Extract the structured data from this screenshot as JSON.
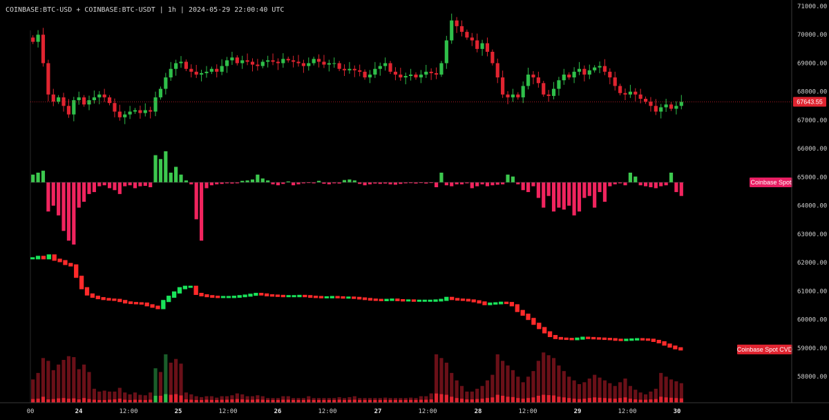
{
  "header": {
    "symbol": "COINBASE:BTC-USD + COINBASE:BTC-USDT",
    "sep1": "|",
    "interval": "1h",
    "sep2": "|",
    "datetime": "2024-05-29 22:00:40 UTC"
  },
  "colors": {
    "up": "#2fbf4a",
    "down": "#e02430",
    "delta_up": "#3cc84e",
    "delta_down": "#f0245e",
    "cvd_up": "#19e35a",
    "cvd_down": "#ff2a2a",
    "vol_up_dark": "#1a5e2a",
    "vol_down_dark": "#6a1018",
    "price_tag": "#e02430",
    "label_pink": "#e91e63",
    "label_red": "#e02430",
    "axis_text": "#cfcfcf"
  },
  "price_tag": "67643.55",
  "indicator_labels": {
    "delta": "Coinbase Spot",
    "cvd": "Coinbase Spot CVD"
  },
  "chart_data": {
    "type": "candlestick",
    "title": "COINBASE:BTC-USD + COINBASE:BTC-USDT",
    "interval": "1h",
    "y_axis_ticks": [
      "71000.00",
      "70000.00",
      "69000.00",
      "68000.00",
      "67000.00",
      "66000.00",
      "65000.00",
      "64000.00",
      "63000.00",
      "62000.00",
      "61000.00",
      "60000.00",
      "59000.00",
      "58000.00"
    ],
    "ylim": [
      57400,
      71100
    ],
    "x_axis_ticks": [
      {
        "label": "00",
        "day": false
      },
      {
        "label": "24",
        "day": true
      },
      {
        "label": "12:00",
        "day": false
      },
      {
        "label": "25",
        "day": true
      },
      {
        "label": "12:00",
        "day": false
      },
      {
        "label": "26",
        "day": true
      },
      {
        "label": "12:00",
        "day": false
      },
      {
        "label": "27",
        "day": true
      },
      {
        "label": "12:00",
        "day": false
      },
      {
        "label": "28",
        "day": true
      },
      {
        "label": "12:00",
        "day": false
      },
      {
        "label": "29",
        "day": true
      },
      {
        "label": "12:00",
        "day": false
      },
      {
        "label": "30",
        "day": true
      }
    ],
    "last_price": 67643.55,
    "closes": [
      69750,
      70000,
      69000,
      67900,
      67650,
      67800,
      67500,
      67200,
      67700,
      67800,
      67550,
      67700,
      67800,
      67900,
      67800,
      67600,
      67300,
      67100,
      67200,
      67300,
      67350,
      67250,
      67350,
      67300,
      67800,
      68100,
      68500,
      68800,
      69000,
      69050,
      68800,
      68700,
      68600,
      68650,
      68700,
      68800,
      68700,
      68900,
      69100,
      69200,
      69000,
      69100,
      69050,
      68950,
      68900,
      69050,
      69100,
      69050,
      69000,
      69150,
      69100,
      69050,
      69000,
      68900,
      69000,
      69150,
      69050,
      68950,
      69000,
      69000,
      68800,
      68750,
      68800,
      68750,
      68700,
      68500,
      68600,
      68800,
      68900,
      69000,
      68700,
      68600,
      68500,
      68550,
      68600,
      68500,
      68600,
      68700,
      68650,
      68600,
      69000,
      69800,
      70500,
      70300,
      70100,
      69900,
      69800,
      69500,
      69700,
      69400,
      69000,
      68500,
      67900,
      67800,
      67900,
      67800,
      68200,
      68600,
      68500,
      68300,
      67900,
      67850,
      68100,
      68400,
      68600,
      68500,
      68700,
      68800,
      68600,
      68750,
      68850,
      68900,
      68700,
      68500,
      68200,
      67950,
      67900,
      68000,
      67900,
      67750,
      67650,
      67500,
      67300,
      67450,
      67550,
      67400,
      67500,
      67643.55
    ],
    "delta": {
      "name": "Coinbase Spot",
      "values": [
        400,
        500,
        600,
        -1500,
        -1200,
        -1700,
        -2500,
        -3000,
        -3200,
        -1300,
        -1000,
        -600,
        -500,
        -200,
        -150,
        -300,
        -400,
        -600,
        -200,
        -150,
        -300,
        -200,
        -180,
        -250,
        1400,
        1200,
        1600,
        500,
        800,
        400,
        100,
        -100,
        -1900,
        -3000,
        -300,
        -150,
        -100,
        -80,
        -50,
        -60,
        -50,
        80,
        100,
        150,
        400,
        200,
        100,
        -100,
        -150,
        -80,
        50,
        -150,
        -100,
        -50,
        -30,
        -50,
        80,
        -70,
        -100,
        -50,
        -60,
        120,
        150,
        100,
        -80,
        -150,
        -100,
        -60,
        -80,
        -60,
        -100,
        -120,
        -80,
        -50,
        -40,
        -60,
        -30,
        -60,
        -20,
        -250,
        500,
        -150,
        -200,
        -100,
        -100,
        -50,
        -300,
        -200,
        -100,
        -200,
        -150,
        -120,
        -100,
        400,
        300,
        -100,
        -400,
        -500,
        -200,
        -800,
        -1300,
        -700,
        -1500,
        -1300,
        -1400,
        -1200,
        -1700,
        -1500,
        -800,
        -700,
        -1300,
        -500,
        -1000,
        -200,
        -100,
        -50,
        -150,
        500,
        300,
        -150,
        -200,
        -250,
        -300,
        -200,
        -150,
        500,
        -500,
        -700,
        -800,
        -600,
        -500,
        -550,
        -600,
        -550
      ],
      "legend": "Coinbase Spot"
    },
    "cvd": {
      "name": "Coinbase Spot CVD",
      "values": [
        62150,
        62200,
        62150,
        62250,
        62100,
        62050,
        61950,
        61900,
        61500,
        61100,
        60880,
        60800,
        60750,
        60720,
        60700,
        60690,
        60650,
        60600,
        60580,
        60570,
        60560,
        60500,
        60450,
        60400,
        60650,
        60800,
        60950,
        61100,
        61150,
        61150,
        60900,
        60850,
        60820,
        60800,
        60790,
        60790,
        60790,
        60800,
        60820,
        60840,
        60870,
        60900,
        60880,
        60850,
        60840,
        60830,
        60820,
        60820,
        60820,
        60830,
        60820,
        60800,
        60790,
        60780,
        60780,
        60790,
        60780,
        60770,
        60770,
        60760,
        60740,
        60720,
        60700,
        60690,
        60680,
        60690,
        60700,
        60680,
        60670,
        60670,
        60660,
        60660,
        60660,
        60660,
        60670,
        60690,
        60760,
        60720,
        60700,
        60690,
        60670,
        60640,
        60600,
        60540,
        60560,
        60570,
        60590,
        60580,
        60500,
        60300,
        60170,
        60020,
        59850,
        59700,
        59550,
        59420,
        59350,
        59330,
        59320,
        59310,
        59330,
        59360,
        59350,
        59340,
        59330,
        59320,
        59310,
        59290,
        59280,
        59290,
        59300,
        59310,
        59300,
        59290,
        59250,
        59200,
        59120,
        59050,
        58990,
        58950
      ]
    },
    "volume": {
      "name": "Volume",
      "up": [
        50,
        60,
        120,
        40,
        50,
        70,
        80,
        60,
        70,
        40,
        80,
        50,
        30,
        20,
        20,
        30,
        40,
        60,
        30,
        20,
        30,
        25,
        20,
        30,
        220,
        150,
        320,
        180,
        200,
        160,
        40,
        30,
        20,
        20,
        30,
        25,
        20,
        30,
        30,
        40,
        50,
        40,
        30,
        30,
        40,
        30,
        20,
        20,
        20,
        30,
        30,
        20,
        20,
        20,
        30,
        20,
        20,
        20,
        20,
        20,
        30,
        20,
        25,
        30,
        20,
        20,
        20,
        20,
        20,
        25,
        20,
        20,
        20,
        20,
        25,
        20,
        30,
        30,
        40,
        220,
        200,
        180,
        120,
        80,
        60,
        40,
        40,
        50,
        60,
        80,
        100,
        180,
        150,
        120,
        110,
        80,
        60,
        80,
        100,
        150,
        180,
        170,
        160,
        120,
        100,
        80,
        60,
        50,
        60,
        80,
        100,
        90,
        80,
        70,
        60,
        80,
        100,
        60,
        40,
        30,
        30,
        40,
        50,
        120,
        100,
        90,
        80,
        70
      ],
      "down": [
        200,
        260,
        360,
        410,
        300,
        340,
        380,
        440,
        420,
        320,
        330,
        280,
        120,
        100,
        110,
        90,
        80,
        100,
        80,
        70,
        80,
        60,
        60,
        80,
        150,
        180,
        200,
        250,
        270,
        260,
        70,
        60,
        50,
        40,
        40,
        45,
        35,
        40,
        40,
        40,
        50,
        50,
        40,
        40,
        40,
        40,
        30,
        30,
        30,
        40,
        40,
        30,
        30,
        30,
        40,
        30,
        30,
        30,
        30,
        30,
        30,
        30,
        35,
        40,
        30,
        30,
        30,
        30,
        30,
        30,
        30,
        30,
        30,
        30,
        30,
        30,
        40,
        40,
        60,
        300,
        280,
        250,
        200,
        160,
        120,
        80,
        80,
        100,
        120,
        160,
        200,
        340,
        300,
        280,
        240,
        200,
        160,
        200,
        240,
        300,
        360,
        340,
        320,
        280,
        240,
        200,
        180,
        150,
        160,
        180,
        200,
        180,
        160,
        140,
        120,
        140,
        160,
        120,
        100,
        80,
        60,
        80,
        100,
        200,
        180,
        160,
        150,
        140
      ]
    }
  }
}
